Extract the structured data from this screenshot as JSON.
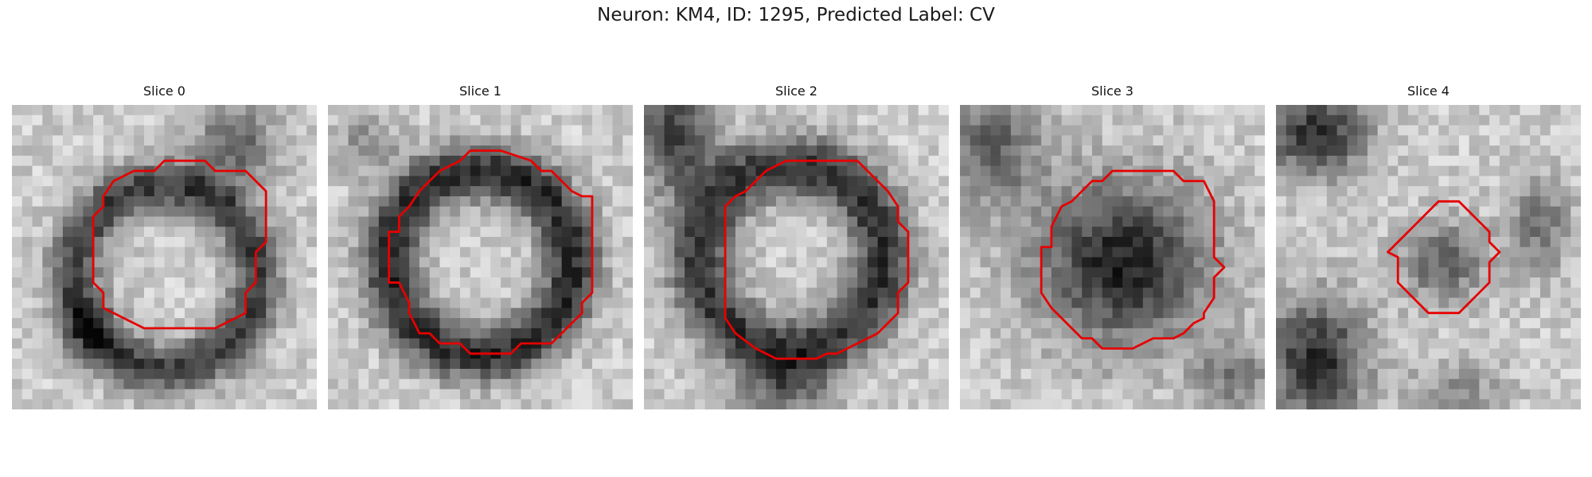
{
  "figure": {
    "title": "Neuron: KM4, ID: 1295, Predicted Label: CV"
  },
  "panels": [
    {
      "title": "Slice 0"
    },
    {
      "title": "Slice 1"
    },
    {
      "title": "Slice 2"
    },
    {
      "title": "Slice 3"
    },
    {
      "title": "Slice 4"
    }
  ],
  "colors": {
    "contour": "#e60000",
    "background": "#ffffff"
  },
  "image": {
    "colormap": "grayscale"
  }
}
